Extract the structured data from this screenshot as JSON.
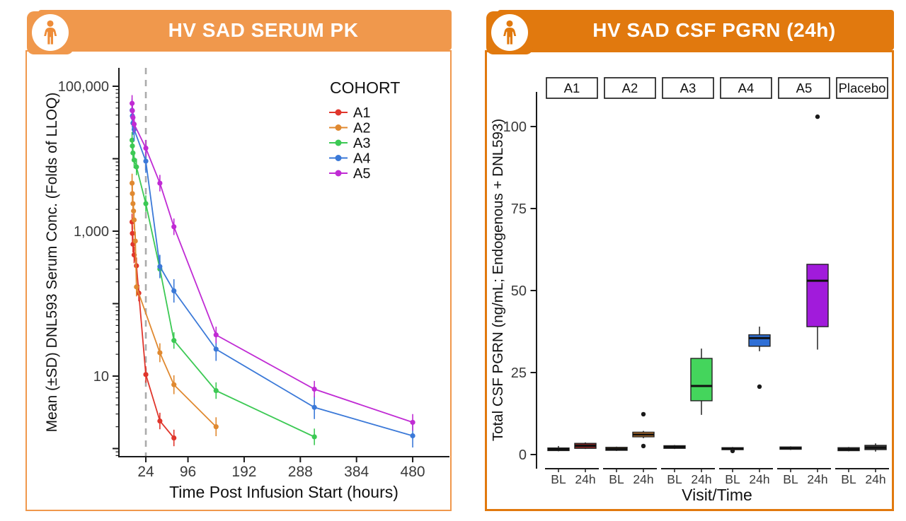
{
  "left_card": {
    "title": "HV SAD SERUM PK",
    "header_color": "#F0984C",
    "border_color": "#F0984C",
    "icon": "person-icon"
  },
  "right_card": {
    "title": "HV SAD CSF PGRN (24h)",
    "header_color": "#E1790E",
    "border_color": "#E1790E",
    "icon": "person-icon"
  },
  "chart_data": [
    {
      "type": "line",
      "title": "HV SAD SERUM PK",
      "xlabel": "Time Post Infusion Start (hours)",
      "ylabel": "Mean (±SD) DNL593 Serum Conc. (Folds of LLOQ)",
      "y_scale": "log10",
      "ylim": [
        1,
        100000
      ],
      "xlim": [
        -22,
        543
      ],
      "x_ticks": [
        24,
        96,
        192,
        288,
        384,
        480
      ],
      "y_ticks": [
        {
          "v": 100000,
          "label": "100,000"
        },
        {
          "v": 1000,
          "label": "1,000"
        },
        {
          "v": 10,
          "label": "10"
        }
      ],
      "reference_line_x": 24,
      "reference_line_style": "gray dashed vertical at 24 h",
      "legend_title": "COHORT",
      "error_bars": "±SD vertical bars on points",
      "series": [
        {
          "name": "A1",
          "color": "#E0362C",
          "err_factor": 1.3,
          "points": [
            [
              0.5,
              1340
            ],
            [
              1,
              930
            ],
            [
              2,
              660
            ],
            [
              4,
              470
            ],
            [
              8,
              333
            ],
            [
              12,
              140
            ],
            [
              24,
              10.5
            ],
            [
              48,
              2.4
            ],
            [
              72,
              1.4
            ]
          ]
        },
        {
          "name": "A2",
          "color": "#E08930",
          "err_factor": 1.35,
          "points": [
            [
              0.5,
              4600
            ],
            [
              1,
              3300
            ],
            [
              2,
              2400
            ],
            [
              3,
              1900
            ],
            [
              4,
              1430
            ],
            [
              6,
              730
            ],
            [
              8,
              170
            ],
            [
              48,
              21
            ],
            [
              72,
              7.6
            ],
            [
              144,
              2.0
            ]
          ]
        },
        {
          "name": "A3",
          "color": "#3CC954",
          "err_factor": 1.3,
          "points": [
            [
              0.5,
              18000
            ],
            [
              1,
              15000
            ],
            [
              2,
              12000
            ],
            [
              4,
              9600
            ],
            [
              8,
              7700
            ],
            [
              24,
              2400
            ],
            [
              48,
              300
            ],
            [
              72,
              31
            ],
            [
              144,
              6.3
            ],
            [
              312,
              1.45
            ]
          ]
        },
        {
          "name": "A4",
          "color": "#3B79D8",
          "err_factor": 1.45,
          "points": [
            [
              0.5,
              46500
            ],
            [
              1,
              38900
            ],
            [
              2,
              31000
            ],
            [
              4,
              25400
            ],
            [
              24,
              9250
            ],
            [
              48,
              325
            ],
            [
              72,
              150
            ],
            [
              144,
              23.5
            ],
            [
              312,
              3.7
            ],
            [
              480,
              1.5
            ]
          ]
        },
        {
          "name": "A5",
          "color": "#C02BD4",
          "err_factor": 1.3,
          "points": [
            [
              0.5,
              58000
            ],
            [
              1,
              46000
            ],
            [
              2,
              37000
            ],
            [
              4,
              30000
            ],
            [
              24,
              14000
            ],
            [
              48,
              4600
            ],
            [
              72,
              1150
            ],
            [
              144,
              37
            ],
            [
              312,
              6.6
            ],
            [
              480,
              2.3
            ]
          ]
        }
      ]
    },
    {
      "type": "boxplot",
      "title": "HV SAD CSF PGRN (24h)",
      "xlabel": "Visit/Time",
      "ylabel": "Total CSF PGRN (ng/mL; Endogenous + DNL593)",
      "ylim": [
        -3,
        107
      ],
      "y_ticks": [
        0,
        25,
        50,
        75,
        100
      ],
      "visit_labels": [
        "BL",
        "24h"
      ],
      "facets": [
        {
          "label": "A1",
          "boxes": [
            {
              "visit": "BL",
              "color": "#3D3D3D",
              "lo": 1.0,
              "q1": 1.2,
              "med": 1.6,
              "q3": 2.0,
              "hi": 2.6,
              "outliers": []
            },
            {
              "visit": "24h",
              "color": "#8B2423",
              "lo": 1.7,
              "q1": 1.9,
              "med": 2.7,
              "q3": 3.4,
              "hi": 3.7,
              "outliers": []
            }
          ]
        },
        {
          "label": "A2",
          "boxes": [
            {
              "visit": "BL",
              "color": "#C8741E",
              "lo": 1.1,
              "q1": 1.3,
              "med": 1.7,
              "q3": 2.2,
              "hi": 2.4,
              "outliers": []
            },
            {
              "visit": "24h",
              "color": "#DF8830",
              "lo": 5.0,
              "q1": 5.4,
              "med": 6.1,
              "q3": 6.8,
              "hi": 7.2,
              "outliers": [
                12.3,
                2.6
              ]
            }
          ]
        },
        {
          "label": "A3",
          "boxes": [
            {
              "visit": "BL",
              "color": "#3D3D3D",
              "lo": 1.7,
              "q1": 1.9,
              "med": 2.3,
              "q3": 2.7,
              "hi": 2.9,
              "outliers": []
            },
            {
              "visit": "24h",
              "color": "#44D55C",
              "lo": 12.1,
              "q1": 16.4,
              "med": 20.9,
              "q3": 29.3,
              "hi": 32.3,
              "outliers": []
            }
          ]
        },
        {
          "label": "A4",
          "boxes": [
            {
              "visit": "BL",
              "color": "#3D3D3D",
              "lo": 1.3,
              "q1": 1.5,
              "med": 1.8,
              "q3": 2.1,
              "hi": 2.3,
              "outliers": [
                1.1
              ]
            },
            {
              "visit": "24h",
              "color": "#2F6FD6",
              "lo": 31.5,
              "q1": 33.0,
              "med": 35.5,
              "q3": 36.5,
              "hi": 39.0,
              "outliers": [
                20.7
              ]
            }
          ]
        },
        {
          "label": "A5",
          "boxes": [
            {
              "visit": "BL",
              "color": "#3D3D3D",
              "lo": 1.4,
              "q1": 1.6,
              "med": 1.9,
              "q3": 2.3,
              "hi": 2.5,
              "outliers": []
            },
            {
              "visit": "24h",
              "color": "#A11BDB",
              "lo": 32.0,
              "q1": 39.0,
              "med": 53.0,
              "q3": 58.0,
              "hi": 58.0,
              "outliers": [
                103
              ]
            }
          ]
        },
        {
          "label": "Placebo",
          "boxes": [
            {
              "visit": "BL",
              "color": "#3D3D3D",
              "lo": 1.0,
              "q1": 1.2,
              "med": 1.6,
              "q3": 2.1,
              "hi": 2.3,
              "outliers": []
            },
            {
              "visit": "24h",
              "color": "#3D3D3D",
              "lo": 0.9,
              "q1": 1.5,
              "med": 2.1,
              "q3": 2.8,
              "hi": 3.4,
              "outliers": []
            }
          ]
        }
      ]
    }
  ]
}
